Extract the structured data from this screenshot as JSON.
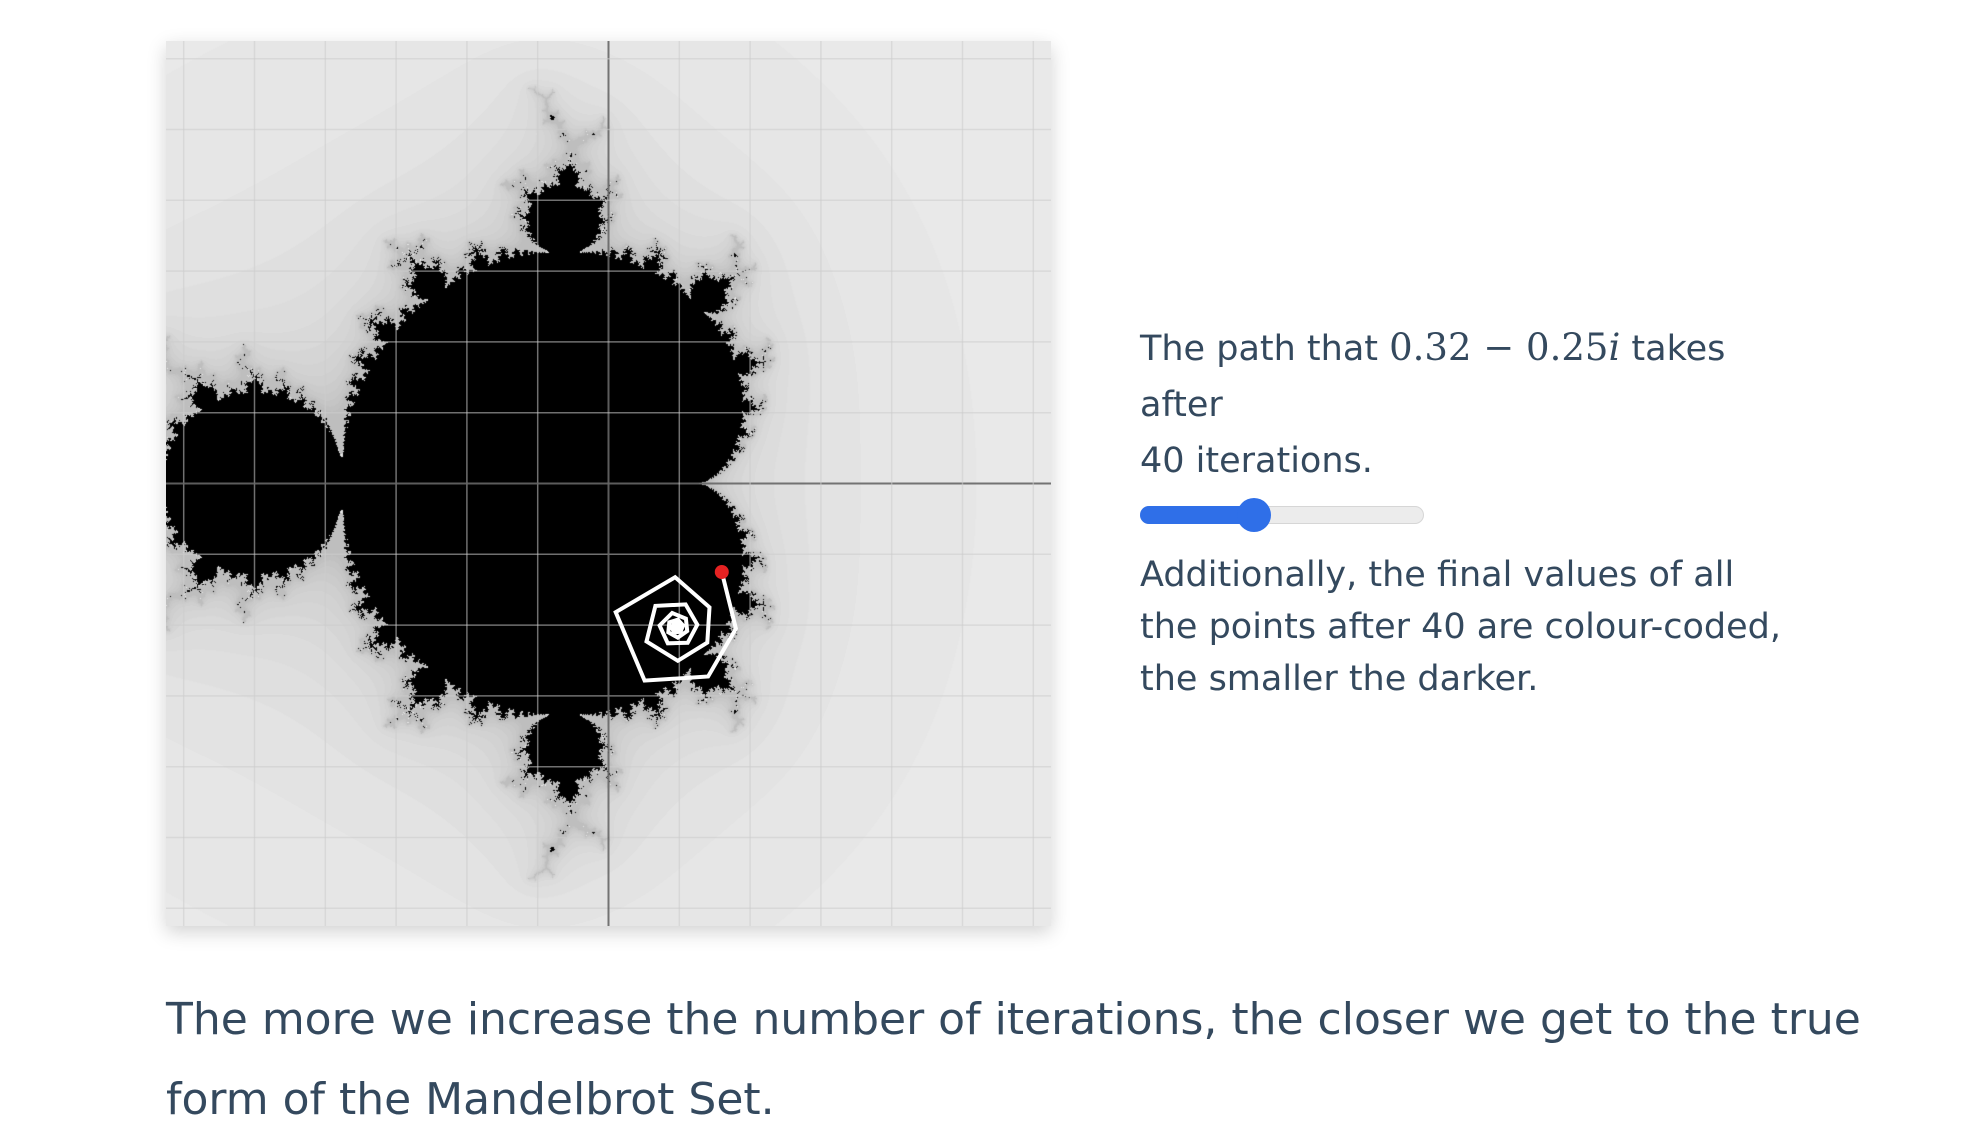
{
  "figure": {
    "point_re": 0.32,
    "point_im": -0.25,
    "iterations": 40,
    "colors": {
      "set": "#000000",
      "grid": "#cccccc",
      "axis": "#666666",
      "path": "#ffffff",
      "start_point": "#e52222"
    }
  },
  "side": {
    "caption_prefix": "The path that ",
    "math_real": "0.32",
    "math_op": " − ",
    "math_imag_num": "0.25",
    "math_imag_unit": "i",
    "caption_suffix": " takes after",
    "caption_line2": "40 iterations.",
    "slider": {
      "value": 40,
      "min": 0,
      "max": 100,
      "color": "#2f6fe8"
    },
    "note": "Additionally, the final values of all the points after 40 are colour-coded, the smaller the darker."
  },
  "body_text": "The more we increase the number of iterations, the closer we get to the true form of the Mandelbrot Set."
}
